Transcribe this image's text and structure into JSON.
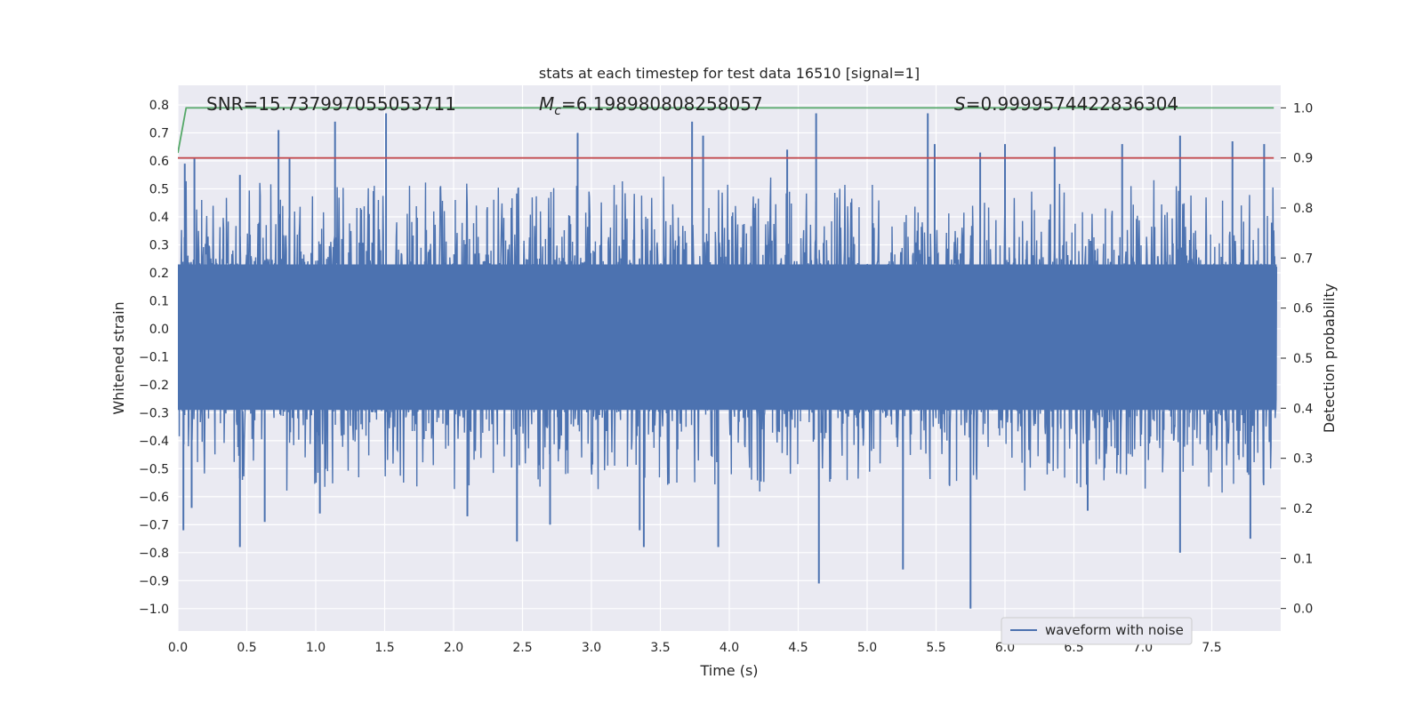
{
  "chart_data": {
    "type": "line",
    "title": "stats at each timestep for test data 16510 [signal=1]",
    "xlabel": "Time (s)",
    "ylabel": "Whitened strain",
    "y2label": "Detection probability",
    "xlim": [
      0.0,
      8.0
    ],
    "ylim": [
      -1.08,
      0.87
    ],
    "y2lim": [
      -0.045,
      1.045
    ],
    "xticks": [
      0.0,
      0.5,
      1.0,
      1.5,
      2.0,
      2.5,
      3.0,
      3.5,
      4.0,
      4.5,
      5.0,
      5.5,
      6.0,
      6.5,
      7.0,
      7.5
    ],
    "yticks": [
      0.8,
      0.7,
      0.6,
      0.5,
      0.4,
      0.3,
      0.2,
      0.1,
      0.0,
      -0.1,
      -0.2,
      -0.3,
      -0.4,
      -0.5,
      -0.6,
      -0.7,
      -0.8,
      -0.9,
      -1.0
    ],
    "y2ticks": [
      1.0,
      0.9,
      0.8,
      0.7,
      0.6,
      0.5,
      0.4,
      0.3,
      0.2,
      0.1,
      0.0
    ],
    "grid": true,
    "legend": {
      "position": "bottom-right",
      "entries": [
        "waveform with noise"
      ]
    },
    "annotations": {
      "snr": "SNR=15.737997055053711",
      "mc_symbol": "M",
      "mc_sub": "c",
      "mc_value": "=6.198980808258057",
      "s_symbol": "S",
      "s_value": "=0.9999574422836304"
    },
    "series": [
      {
        "name": "waveform with noise",
        "axis": "left",
        "color": "#4c72b0",
        "description": "dense whitened strain noise, core band about -0.29 to 0.23, spikes to about 0.77 and -1.0",
        "core_band": [
          -0.29,
          0.23
        ],
        "peak_spikes": [
          {
            "x": 0.05,
            "y": 0.59
          },
          {
            "x": 0.12,
            "y": 0.61
          },
          {
            "x": 0.45,
            "y": 0.55
          },
          {
            "x": 0.73,
            "y": 0.71
          },
          {
            "x": 0.81,
            "y": 0.61
          },
          {
            "x": 1.14,
            "y": 0.74
          },
          {
            "x": 1.51,
            "y": 0.77
          },
          {
            "x": 2.9,
            "y": 0.7
          },
          {
            "x": 3.73,
            "y": 0.74
          },
          {
            "x": 3.81,
            "y": 0.69
          },
          {
            "x": 4.42,
            "y": 0.64
          },
          {
            "x": 4.63,
            "y": 0.77
          },
          {
            "x": 5.44,
            "y": 0.77
          },
          {
            "x": 5.49,
            "y": 0.66
          },
          {
            "x": 5.82,
            "y": 0.63
          },
          {
            "x": 6.0,
            "y": 0.66
          },
          {
            "x": 6.36,
            "y": 0.65
          },
          {
            "x": 6.85,
            "y": 0.66
          },
          {
            "x": 7.27,
            "y": 0.69
          },
          {
            "x": 7.65,
            "y": 0.67
          },
          {
            "x": 7.88,
            "y": 0.66
          }
        ],
        "trough_spikes": [
          {
            "x": 0.04,
            "y": -0.72
          },
          {
            "x": 0.1,
            "y": -0.64
          },
          {
            "x": 0.45,
            "y": -0.78
          },
          {
            "x": 0.63,
            "y": -0.69
          },
          {
            "x": 1.03,
            "y": -0.66
          },
          {
            "x": 2.1,
            "y": -0.67
          },
          {
            "x": 2.46,
            "y": -0.76
          },
          {
            "x": 2.7,
            "y": -0.7
          },
          {
            "x": 3.35,
            "y": -0.72
          },
          {
            "x": 3.38,
            "y": -0.78
          },
          {
            "x": 3.92,
            "y": -0.78
          },
          {
            "x": 4.65,
            "y": -0.91
          },
          {
            "x": 5.26,
            "y": -0.86
          },
          {
            "x": 5.75,
            "y": -1.0
          },
          {
            "x": 6.6,
            "y": -0.65
          },
          {
            "x": 7.27,
            "y": -0.8
          },
          {
            "x": 7.78,
            "y": -0.75
          }
        ]
      },
      {
        "name": "detection probability",
        "axis": "right",
        "color": "#55a868",
        "x": [
          0.0,
          0.06,
          7.95
        ],
        "y": [
          0.91,
          1.0,
          1.0
        ]
      },
      {
        "name": "threshold",
        "axis": "right",
        "color": "#c44e52",
        "x": [
          0.0,
          7.95
        ],
        "y": [
          0.9,
          0.9
        ]
      }
    ]
  },
  "colors": {
    "plot_background": "#eaeaf2",
    "grid": "#ffffff",
    "waveform": "#4c72b0",
    "probability": "#55a868",
    "threshold": "#c44e52",
    "text": "#262626"
  }
}
